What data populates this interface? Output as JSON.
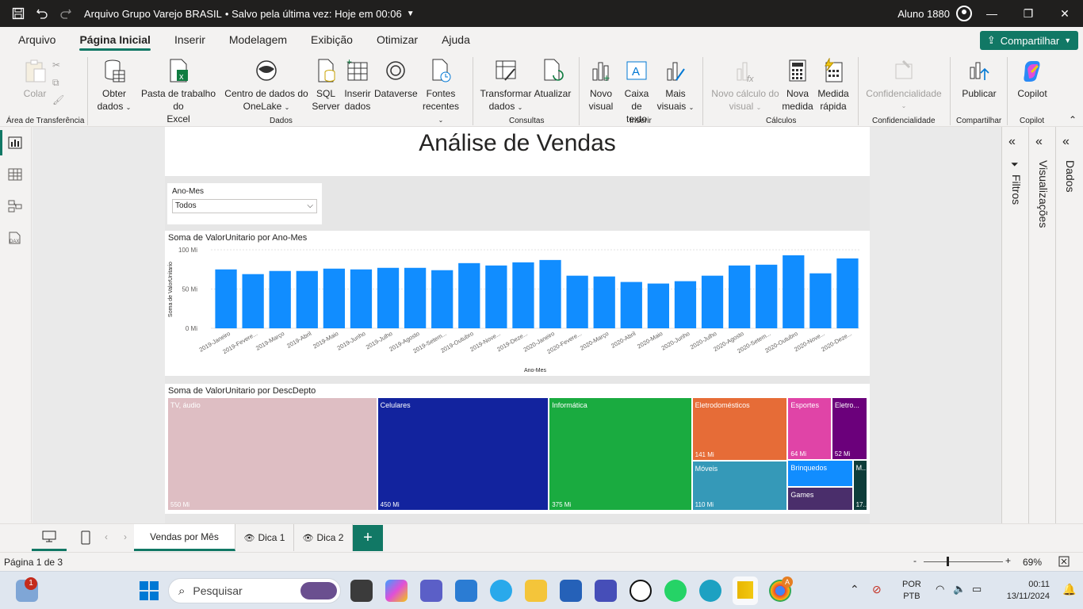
{
  "titlebar": {
    "doc_title": "Arquivo Grupo Varejo BRASIL",
    "save_status": "• Salvo pela última vez: Hoje em 00:06",
    "user": "Aluno 1880"
  },
  "menu": {
    "tabs": [
      "Arquivo",
      "Página Inicial",
      "Inserir",
      "Modelagem",
      "Exibição",
      "Otimizar",
      "Ajuda"
    ],
    "active": "Página Inicial",
    "share_label": "Compartilhar"
  },
  "ribbon": {
    "paste": "Colar",
    "clipboard_group": "Área de Transferência",
    "get_data": [
      "Obter",
      "dados"
    ],
    "excel": [
      "Pasta de trabalho do",
      "Excel"
    ],
    "onelake": [
      "Centro de dados do",
      "OneLake"
    ],
    "sql": [
      "SQL",
      "Server"
    ],
    "enter_data": [
      "Inserir",
      "dados"
    ],
    "dataverse": "Dataverse",
    "recent": [
      "Fontes",
      "recentes"
    ],
    "data_group": "Dados",
    "transform": [
      "Transformar",
      "dados"
    ],
    "refresh": "Atualizar",
    "queries_group": "Consultas",
    "new_visual": [
      "Novo",
      "visual"
    ],
    "text_box": [
      "Caixa de",
      "texto"
    ],
    "more_visuals": [
      "Mais",
      "visuais"
    ],
    "insert_group": "Inserir",
    "new_calc": [
      "Novo cálculo do",
      "visual"
    ],
    "new_measure": [
      "Nova",
      "medida"
    ],
    "quick_measure": [
      "Medida",
      "rápida"
    ],
    "calc_group": "Cálculos",
    "sensitivity": "Confidencialidade",
    "sensitivity_group": "Confidencialidade",
    "publish": "Publicar",
    "share_group": "Compartilhar",
    "copilot": "Copilot",
    "copilot_group": "Copilot"
  },
  "report": {
    "title": "Análise de Vendas",
    "slicer": {
      "label": "Ano-Mes",
      "value": "Todos"
    },
    "bar_title": "Soma de ValorUnitario por Ano-Mes",
    "treemap_title": "Soma de ValorUnitario por DescDepto"
  },
  "chart_data": [
    {
      "type": "bar",
      "title": "Soma de ValorUnitario por Ano-Mes",
      "xlabel": "Ano-Mes",
      "ylabel": "Soma de ValorUnitario",
      "ylim": [
        0,
        100
      ],
      "yticks": [
        "0 Mi",
        "50 Mi",
        "100 Mi"
      ],
      "grid": true,
      "color": "#118DFF",
      "categories": [
        "2019-Janeiro",
        "2019-Fevere...",
        "2019-Março",
        "2019-Abril",
        "2019-Maio",
        "2019-Junho",
        "2019-Julho",
        "2019-Agosto",
        "2019-Setem...",
        "2019-Outubro",
        "2019-Nove...",
        "2019-Deze...",
        "2020-Janeiro",
        "2020-Fevere...",
        "2020-Março",
        "2020-Abril",
        "2020-Maio",
        "2020-Junho",
        "2020-Julho",
        "2020-Agosto",
        "2020-Setem...",
        "2020-Outubro",
        "2020-Nove...",
        "2020-Deze..."
      ],
      "values": [
        75,
        69,
        73,
        73,
        76,
        75,
        77,
        77,
        74,
        83,
        80,
        84,
        87,
        67,
        66,
        59,
        57,
        60,
        67,
        80,
        81,
        93,
        70,
        89
      ]
    },
    {
      "type": "treemap",
      "title": "Soma de ValorUnitario por DescDepto",
      "items": [
        {
          "name": "TV, áudio",
          "label": "550 Mi",
          "value": 550,
          "color": "#DEBEC3"
        },
        {
          "name": "Celulares",
          "label": "450 Mi",
          "value": 450,
          "color": "#12239E"
        },
        {
          "name": "Informática",
          "label": "375 Mi",
          "value": 375,
          "color": "#1AAB40"
        },
        {
          "name": "Eletrodomésticos",
          "label": "141 Mi",
          "value": 141,
          "color": "#E66C37"
        },
        {
          "name": "Móveis",
          "label": "110 Mi",
          "value": 110,
          "color": "#3599B8"
        },
        {
          "name": "Esportes",
          "label": "64 Mi",
          "value": 64,
          "color": "#E044A7"
        },
        {
          "name": "Eletro...",
          "label": "52 Mi",
          "value": 52,
          "color": "#6B007B"
        },
        {
          "name": "Brinquedos",
          "label": "",
          "value": 40,
          "color": "#118DFF"
        },
        {
          "name": "Games",
          "label": "",
          "value": 36,
          "color": "#4A2E6B"
        },
        {
          "name": "M...",
          "label": "17...",
          "value": 17,
          "color": "#0E3D3A"
        }
      ]
    }
  ],
  "panes": {
    "filters": "Filtros",
    "visualizations": "Visualizações",
    "data": "Dados"
  },
  "page_tabs": [
    "Vendas por Mês",
    "Dica 1",
    "Dica 2"
  ],
  "status": {
    "page": "Página 1 de 3",
    "zoom": "69%"
  },
  "taskbar": {
    "search": "Pesquisar",
    "lang": [
      "POR",
      "PTB"
    ],
    "time": "00:11",
    "date": "13/11/2024",
    "badge": "1"
  }
}
